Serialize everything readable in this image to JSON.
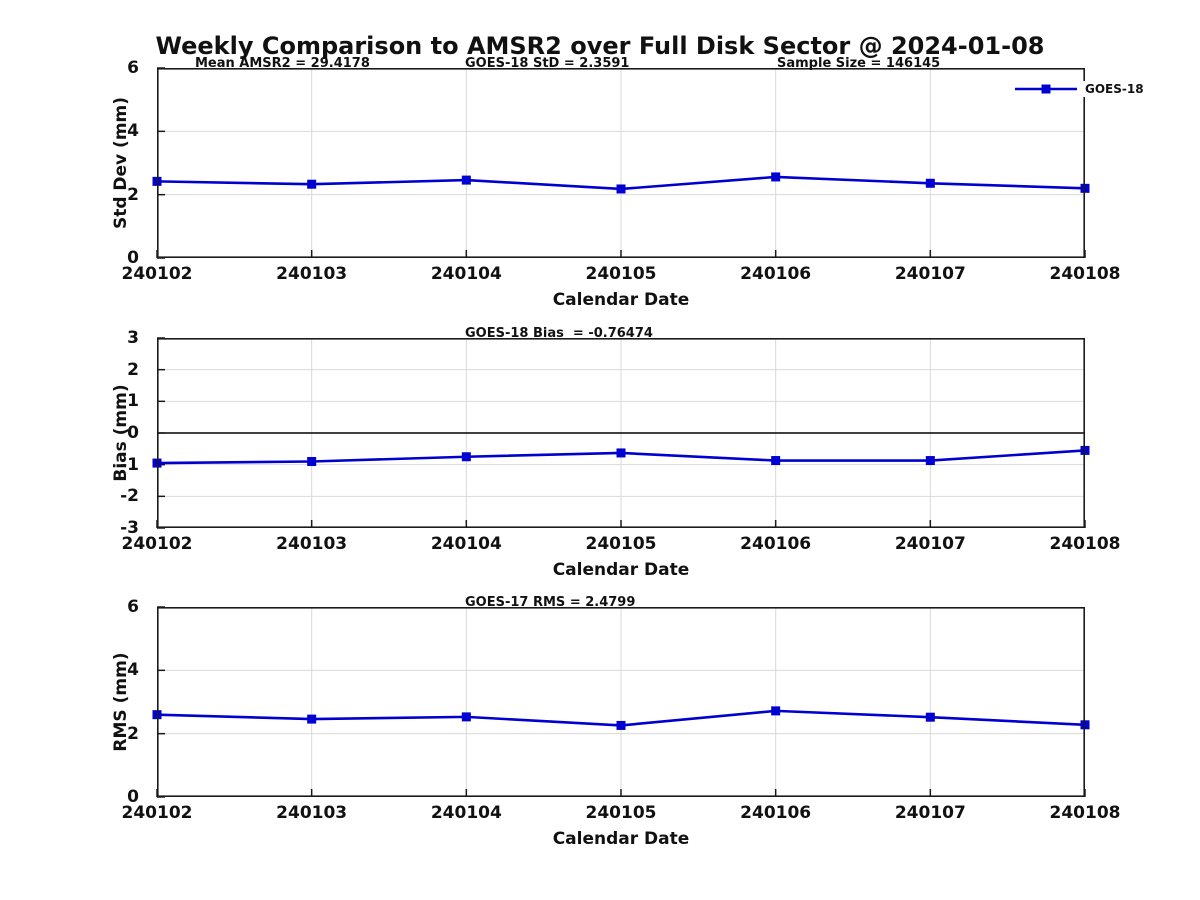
{
  "page_title": "Weekly Comparison to AMSR2 over Full Disk Sector @ 2024-01-08",
  "legend": {
    "label": "GOES-18",
    "position": "top-right"
  },
  "colors": {
    "line": "#0000d0",
    "grid": "#d9d9d9",
    "axis": "#1a1a1a",
    "zero_line": "#000000",
    "background": "#ffffff"
  },
  "chart_data": [
    {
      "type": "line",
      "ylabel": "Std Dev (mm)",
      "xlabel": "Calendar Date",
      "categories": [
        "240102",
        "240103",
        "240104",
        "240105",
        "240106",
        "240107",
        "240108"
      ],
      "series": [
        {
          "name": "GOES-18",
          "values": [
            2.42,
            2.33,
            2.46,
            2.18,
            2.56,
            2.36,
            2.2
          ]
        }
      ],
      "ylim": [
        0,
        6
      ],
      "yticks": [
        0,
        2,
        4,
        6
      ],
      "grid": true,
      "zero_line": false,
      "annotations": [
        "Mean AMSR2 = 29.4178",
        "GOES-18 StD = 2.3591",
        "Sample Size = 146145"
      ],
      "legend_entries": [
        "GOES-18"
      ]
    },
    {
      "type": "line",
      "ylabel": "Bias (mm)",
      "xlabel": "Calendar Date",
      "categories": [
        "240102",
        "240103",
        "240104",
        "240105",
        "240106",
        "240107",
        "240108"
      ],
      "series": [
        {
          "name": "GOES-18",
          "values": [
            -0.95,
            -0.9,
            -0.75,
            -0.63,
            -0.87,
            -0.87,
            -0.55
          ]
        }
      ],
      "ylim": [
        -3,
        3
      ],
      "yticks": [
        -3,
        -2,
        -1,
        0,
        1,
        2,
        3
      ],
      "grid": true,
      "zero_line": true,
      "annotations": [
        "GOES-18 Bias  = -0.76474"
      ]
    },
    {
      "type": "line",
      "ylabel": "RMS (mm)",
      "xlabel": "Calendar Date",
      "categories": [
        "240102",
        "240103",
        "240104",
        "240105",
        "240106",
        "240107",
        "240108"
      ],
      "series": [
        {
          "name": "GOES-18",
          "values": [
            2.6,
            2.46,
            2.53,
            2.26,
            2.72,
            2.52,
            2.28
          ]
        }
      ],
      "ylim": [
        0,
        6
      ],
      "yticks": [
        0,
        2,
        4,
        6
      ],
      "grid": true,
      "zero_line": false,
      "annotations": [
        "GOES-17 RMS = 2.4799"
      ]
    }
  ]
}
